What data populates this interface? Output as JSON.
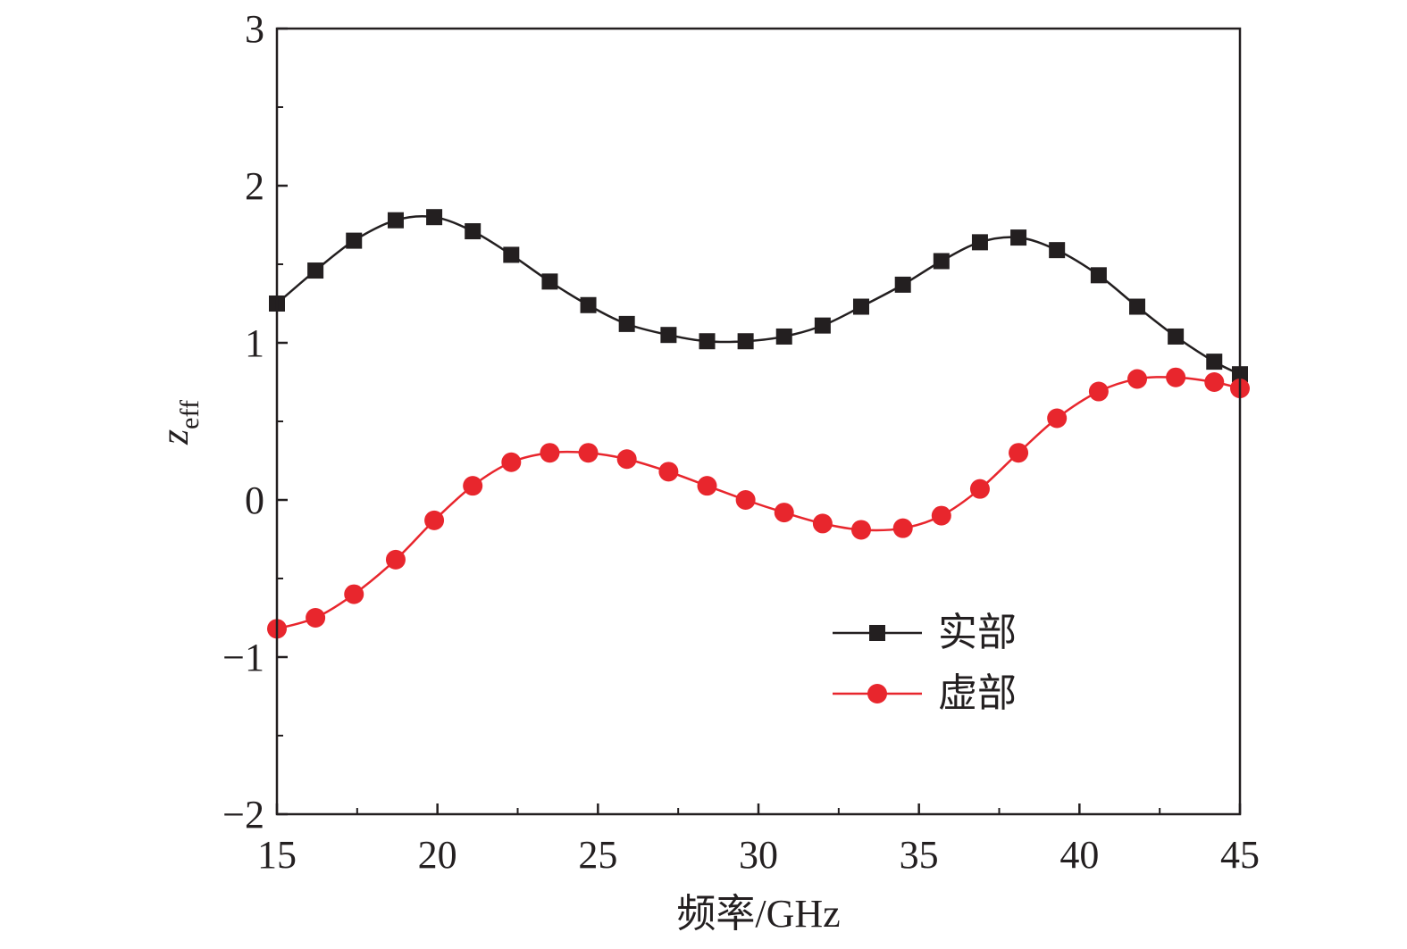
{
  "chart_data": {
    "type": "line",
    "xlabel": "频率/GHz",
    "ylabel": {
      "main": "z",
      "sub": "eff"
    },
    "xlim": [
      15,
      45
    ],
    "ylim": [
      -2,
      3
    ],
    "x_ticks": [
      15,
      20,
      25,
      30,
      35,
      40,
      45
    ],
    "y_ticks": [
      {
        "value": -2,
        "label": "−2"
      },
      {
        "value": -1,
        "label": "−1"
      },
      {
        "value": 0,
        "label": "0"
      },
      {
        "value": 1,
        "label": "1"
      },
      {
        "value": 2,
        "label": "2"
      },
      {
        "value": 3,
        "label": "3"
      }
    ],
    "grid": false,
    "legend_position": "bottom-right",
    "x": [
      15.0,
      16.2,
      17.4,
      18.7,
      19.9,
      21.1,
      22.3,
      23.5,
      24.7,
      25.9,
      27.2,
      28.4,
      29.6,
      30.8,
      32.0,
      33.2,
      34.5,
      35.7,
      36.9,
      38.1,
      39.3,
      40.6,
      41.8,
      43.0,
      44.2,
      45.0
    ],
    "series": [
      {
        "name": "实部",
        "marker": "square",
        "color": "#231f20",
        "values": [
          1.25,
          1.46,
          1.65,
          1.78,
          1.8,
          1.71,
          1.56,
          1.39,
          1.24,
          1.12,
          1.05,
          1.01,
          1.01,
          1.04,
          1.11,
          1.23,
          1.37,
          1.52,
          1.64,
          1.67,
          1.59,
          1.43,
          1.23,
          1.04,
          0.88,
          0.8
        ]
      },
      {
        "name": "虚部",
        "marker": "circle",
        "color": "#e8262d",
        "values": [
          -0.82,
          -0.75,
          -0.6,
          -0.38,
          -0.13,
          0.09,
          0.24,
          0.3,
          0.3,
          0.26,
          0.18,
          0.09,
          0.0,
          -0.08,
          -0.15,
          -0.19,
          -0.18,
          -0.1,
          0.07,
          0.3,
          0.52,
          0.69,
          0.77,
          0.78,
          0.75,
          0.71
        ]
      }
    ]
  }
}
